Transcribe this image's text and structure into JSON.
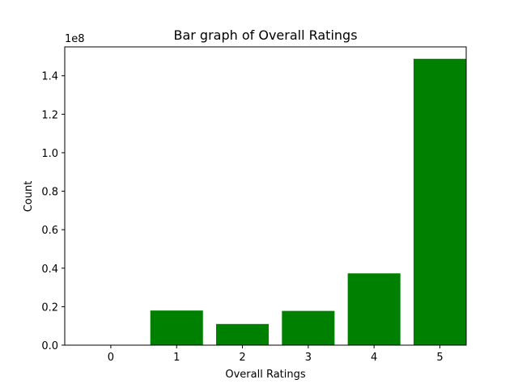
{
  "chart_data": {
    "type": "bar",
    "title": "Bar graph of Overall Ratings",
    "xlabel": "Overall Ratings",
    "ylabel": "Count",
    "offset_label": "1e8",
    "categories": [
      "0",
      "1",
      "2",
      "3",
      "4",
      "5"
    ],
    "values": [
      0,
      18000000,
      11000000,
      17800000,
      37300000,
      148800000
    ],
    "ylim": [
      0,
      155000000
    ],
    "yticks": [
      0,
      20000000,
      40000000,
      60000000,
      80000000,
      100000000,
      120000000,
      140000000
    ],
    "ytick_labels": [
      "0.0",
      "0.2",
      "0.4",
      "0.6",
      "0.8",
      "1.0",
      "1.2",
      "1.4"
    ],
    "bar_color": "#008000",
    "grid": false
  }
}
